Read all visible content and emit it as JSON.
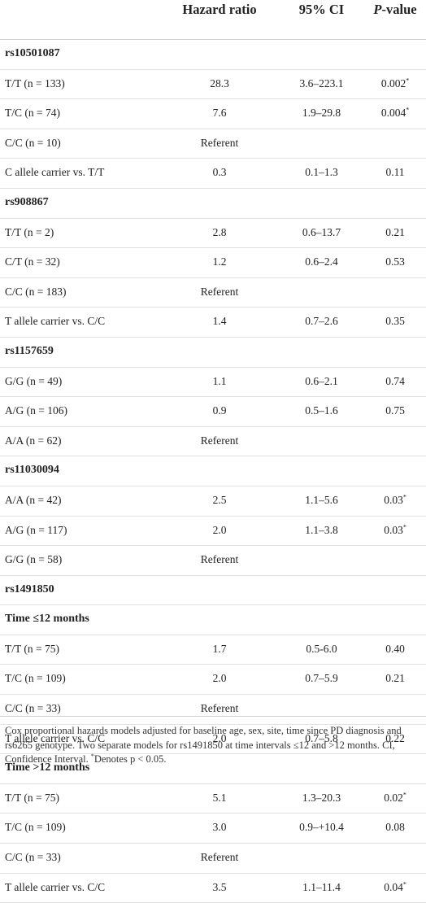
{
  "header": {
    "col1": "",
    "col2": "Hazard ratio",
    "col3": "95% CI",
    "col4_italic": "P",
    "col4_rest": "-value"
  },
  "rows": [
    {
      "type": "section",
      "label": "rs10501087"
    },
    {
      "type": "data",
      "label": "T/T (n = 133)",
      "hr": "28.3",
      "ci": "3.6–223.1",
      "p": "0.002",
      "sig": true
    },
    {
      "type": "data",
      "label": "T/C (n = 74)",
      "hr": "7.6",
      "ci": "1.9–29.8",
      "p": "0.004",
      "sig": true
    },
    {
      "type": "data",
      "label": "C/C (n = 10)",
      "hr": "Referent",
      "ci": "",
      "p": "",
      "sig": false
    },
    {
      "type": "data",
      "label": "C allele carrier vs. T/T",
      "hr": "0.3",
      "ci": "0.1–1.3",
      "p": "0.11",
      "sig": false
    },
    {
      "type": "section",
      "label": "rs908867"
    },
    {
      "type": "data",
      "label": "T/T (n = 2)",
      "hr": "2.8",
      "ci": "0.6–13.7",
      "p": "0.21",
      "sig": false
    },
    {
      "type": "data",
      "label": "C/T (n = 32)",
      "hr": "1.2",
      "ci": "0.6–2.4",
      "p": "0.53",
      "sig": false
    },
    {
      "type": "data",
      "label": "C/C (n = 183)",
      "hr": "Referent",
      "ci": "",
      "p": "",
      "sig": false
    },
    {
      "type": "data",
      "label": "T allele carrier vs. C/C",
      "hr": "1.4",
      "ci": "0.7–2.6",
      "p": "0.35",
      "sig": false
    },
    {
      "type": "section",
      "label": "rs1157659"
    },
    {
      "type": "data",
      "label": "G/G (n = 49)",
      "hr": "1.1",
      "ci": "0.6–2.1",
      "p": "0.74",
      "sig": false
    },
    {
      "type": "data",
      "label": "A/G (n = 106)",
      "hr": "0.9",
      "ci": "0.5–1.6",
      "p": "0.75",
      "sig": false
    },
    {
      "type": "data",
      "label": "A/A (n = 62)",
      "hr": "Referent",
      "ci": "",
      "p": "",
      "sig": false
    },
    {
      "type": "section",
      "label": "rs11030094"
    },
    {
      "type": "data",
      "label": "A/A (n = 42)",
      "hr": "2.5",
      "ci": "1.1–5.6",
      "p": "0.03",
      "sig": true
    },
    {
      "type": "data",
      "label": "A/G (n = 117)",
      "hr": "2.0",
      "ci": "1.1–3.8",
      "p": "0.03",
      "sig": true
    },
    {
      "type": "data",
      "label": "G/G (n = 58)",
      "hr": "Referent",
      "ci": "",
      "p": "",
      "sig": false
    },
    {
      "type": "section",
      "label": "rs1491850"
    },
    {
      "type": "section",
      "label": "Time ≤12 months"
    },
    {
      "type": "data",
      "label": "T/T (n = 75)",
      "hr": "1.7",
      "ci": "0.5-6.0",
      "p": "0.40",
      "sig": false
    },
    {
      "type": "data",
      "label": "T/C (n = 109)",
      "hr": "2.0",
      "ci": "0.7–5.9",
      "p": "0.21",
      "sig": false
    },
    {
      "type": "data",
      "label": "C/C (n = 33)",
      "hr": "Referent",
      "ci": "",
      "p": "",
      "sig": false
    },
    {
      "type": "data",
      "label": "T allele carrier vs. C/C",
      "hr": "2.0",
      "ci": "0.7–5.8",
      "p": "0.22",
      "sig": false
    },
    {
      "type": "section",
      "label": "Time >12 months"
    },
    {
      "type": "data",
      "label": "T/T (n = 75)",
      "hr": "5.1",
      "ci": "1.3–20.3",
      "p": "0.02",
      "sig": true
    },
    {
      "type": "data",
      "label": "T/C (n = 109)",
      "hr": "3.0",
      "ci": "0.9–+10.4",
      "p": "0.08",
      "sig": false
    },
    {
      "type": "data",
      "label": "C/C (n = 33)",
      "hr": "Referent",
      "ci": "",
      "p": "",
      "sig": false
    },
    {
      "type": "data",
      "label": "T allele carrier vs. C/C",
      "hr": "3.5",
      "ci": "1.1–11.4",
      "p": "0.04",
      "sig": true
    }
  ],
  "significance_mark": "*",
  "footnote": {
    "main": "Cox proportional hazards models adjusted for baseline age, sex, site, time since PD diagnosis and rs6265 genotype. Two separate models for rs1491850 at time intervals ≤12 and >12 months. CI, Confidence Interval. ",
    "star": "*",
    "tail": "Denotes p < 0.05."
  }
}
